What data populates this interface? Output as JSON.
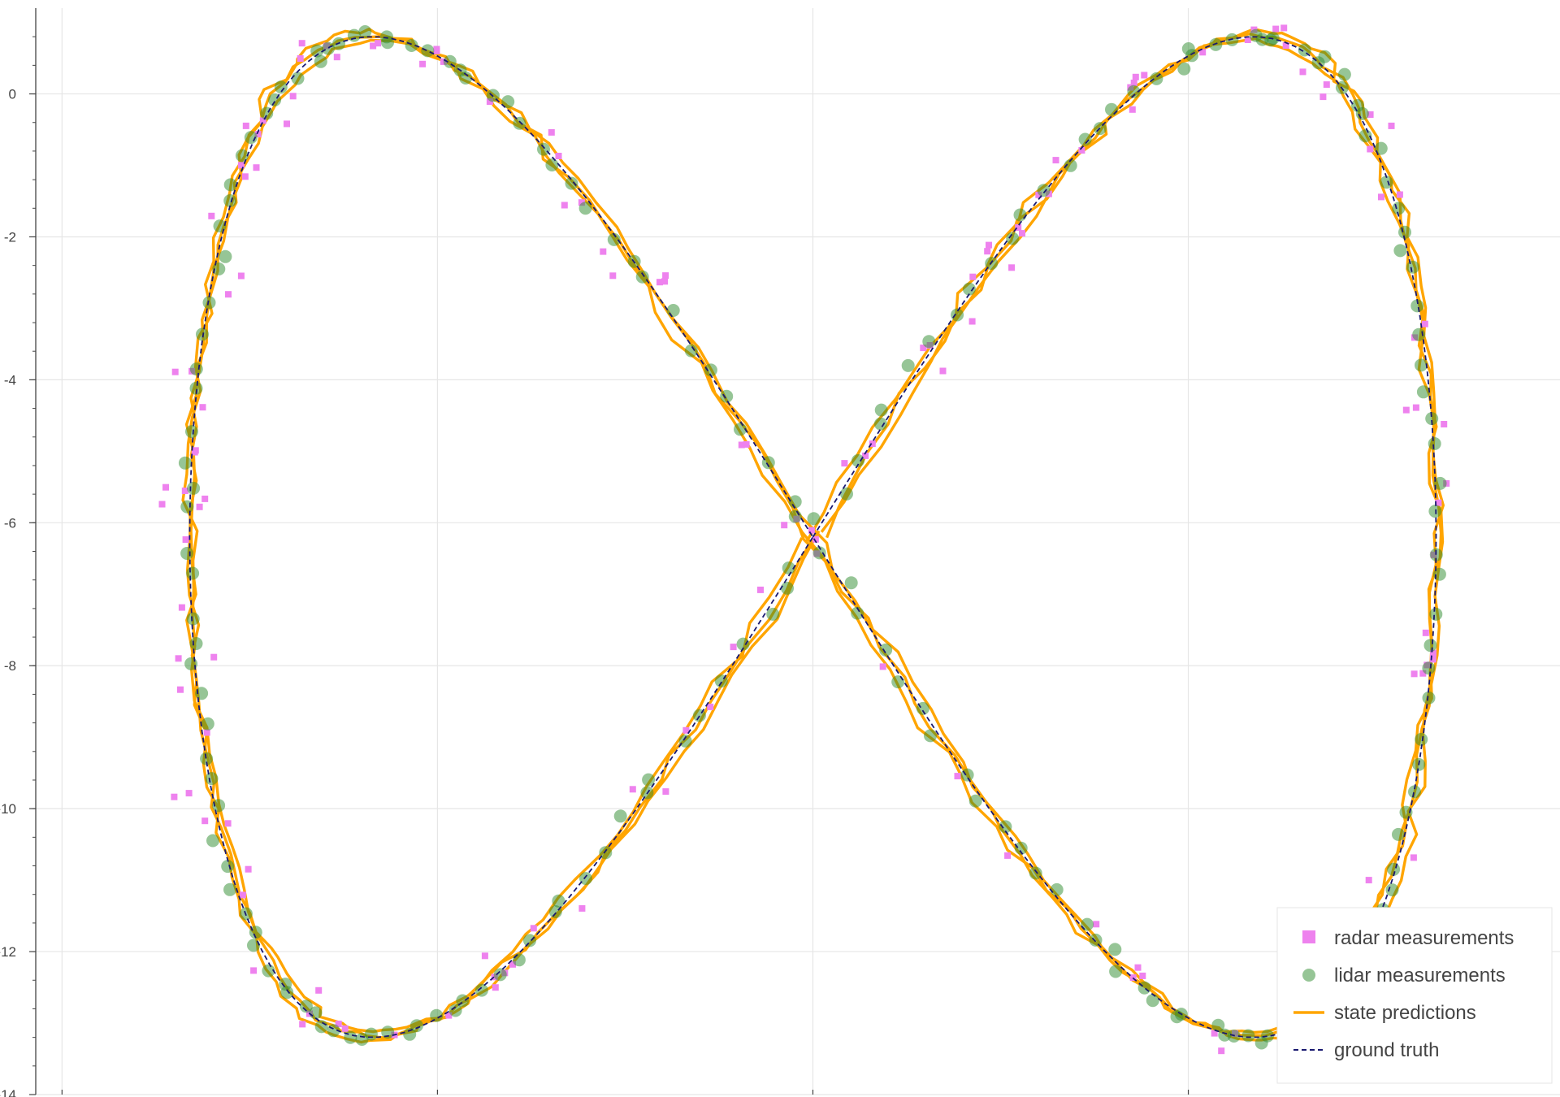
{
  "chart_data": {
    "type": "scatter",
    "title": "",
    "xlabel": "",
    "ylabel": "",
    "xlim": [
      -15.7,
      24.9
    ],
    "ylim": [
      -14,
      1.2
    ],
    "xticks": [
      -15,
      -5,
      5,
      15
    ],
    "yticks": [
      0,
      -2,
      -4,
      -6,
      -8,
      -10,
      -12,
      -14
    ],
    "ytick_labels": [
      "0",
      "-2",
      "-4",
      "-6",
      "-8",
      "-10",
      "-12",
      "-14"
    ],
    "grid": true,
    "legend_position": "bottom-right",
    "curve": {
      "description_param": "figure-eight trajectory",
      "center_x": 5,
      "center_y": -6.2,
      "amp_x": 16.6,
      "amp_y": 7.0,
      "ground_truth_points": 220
    },
    "series": [
      {
        "name": "radar measurements",
        "kind": "square-markers",
        "color": "#ee82ee"
      },
      {
        "name": "lidar measurements",
        "kind": "circle-markers",
        "color": "#2e8b2e"
      },
      {
        "name": "state predictions",
        "kind": "line",
        "color": "#ffa500"
      },
      {
        "name": "ground truth",
        "kind": "dashed-line",
        "color": "#191970"
      }
    ]
  }
}
